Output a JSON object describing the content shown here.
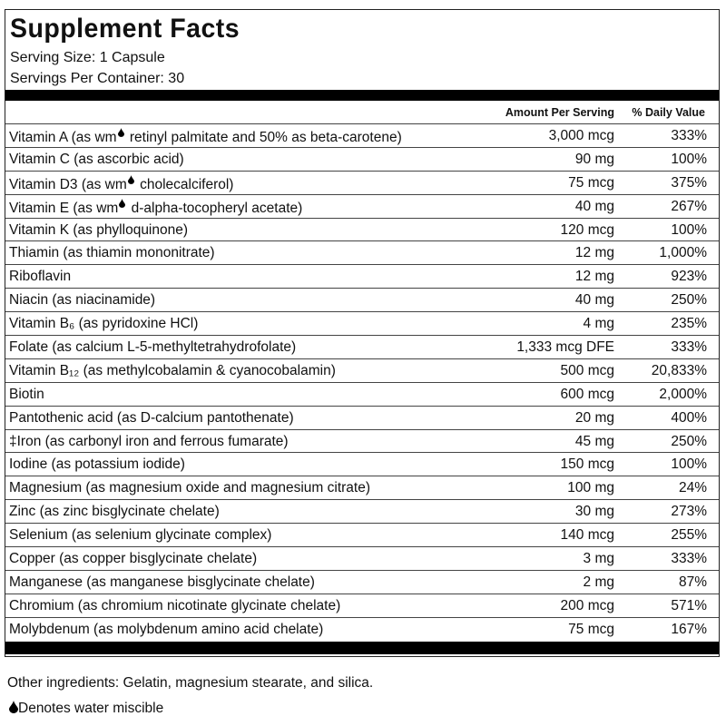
{
  "header": {
    "title": "Supplement Facts",
    "serving_size": "Serving Size: 1 Capsule",
    "servings_per_container": "Servings Per Container: 30"
  },
  "table": {
    "columns": [
      "Amount Per Serving",
      "% Daily Value"
    ],
    "rows": [
      [
        [
          "Vitamin A (as wm",
          " retinyl palmitate and 50% as beta-carotene)"
        ],
        "3,000 mcg",
        "333%"
      ],
      [
        "Vitamin C (as ascorbic acid)",
        "90 mg",
        "100%"
      ],
      [
        [
          "Vitamin D3 (as wm",
          " cholecalciferol)"
        ],
        "75 mcg",
        "375%"
      ],
      [
        [
          "Vitamin E (as wm",
          " d-alpha-tocopheryl acetate)"
        ],
        "40 mg",
        "267%"
      ],
      [
        "Vitamin K (as phylloquinone)",
        "120 mcg",
        "100%"
      ],
      [
        "Thiamin (as thiamin mononitrate)",
        "12 mg",
        "1,000%"
      ],
      [
        "Riboflavin",
        "12 mg",
        "923%"
      ],
      [
        "Niacin (as niacinamide)",
        "40 mg",
        "250%"
      ],
      [
        "Vitamin B₆ (as pyridoxine HCl)",
        "4 mg",
        "235%"
      ],
      [
        "Folate (as calcium L-5-methyltetrahydrofolate)",
        "1,333 mcg DFE",
        "333%"
      ],
      [
        "Vitamin B₁₂ (as methylcobalamin & cyanocobalamin)",
        "500 mcg",
        "20,833%"
      ],
      [
        "Biotin",
        "600 mcg",
        "2,000%"
      ],
      [
        "Pantothenic acid (as D-calcium pantothenate)",
        "20 mg",
        "400%"
      ],
      [
        "‡Iron (as carbonyl iron and ferrous fumarate)",
        "45 mg",
        "250%"
      ],
      [
        "Iodine (as potassium iodide)",
        "150 mcg",
        "100%"
      ],
      [
        "Magnesium (as magnesium oxide and magnesium citrate)",
        "100 mg",
        "24%"
      ],
      [
        "Zinc (as zinc bisglycinate chelate)",
        "30 mg",
        "273%"
      ],
      [
        "Selenium (as selenium glycinate complex)",
        "140 mcg",
        "255%"
      ],
      [
        "Copper (as copper bisglycinate chelate)",
        "3 mg",
        "333%"
      ],
      [
        "Manganese (as manganese bisglycinate chelate)",
        "2 mg",
        "87%"
      ],
      [
        "Chromium (as chromium nicotinate glycinate chelate)",
        "200 mcg",
        "571%"
      ],
      [
        "Molybdenum (as molybdenum amino acid chelate)",
        "75 mcg",
        "167%"
      ]
    ]
  },
  "footer": {
    "other_ingredients": "Other ingredients: Gelatin, magnesium stearate, and silica.",
    "note": "Denotes water miscible"
  }
}
